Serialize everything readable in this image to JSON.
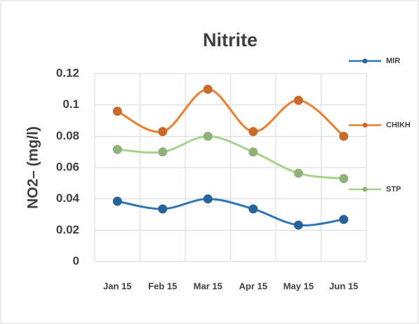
{
  "chart_data": {
    "type": "line",
    "title": "Nitrite",
    "y_label": "NO2– (mg/l)",
    "categories": [
      "Jan 15",
      "Feb 15",
      "Mar 15",
      "Apr 15",
      "May 15",
      "Jun 15"
    ],
    "series": [
      {
        "name": "MIR",
        "color": "#2e75b6",
        "values": [
          0.0385,
          0.0336,
          0.04,
          0.0336,
          0.0233,
          0.0269
        ]
      },
      {
        "name": "CHIKH",
        "color": "#ed7d31",
        "values": [
          0.096,
          0.083,
          0.11,
          0.083,
          0.103,
          0.08
        ]
      },
      {
        "name": "STP",
        "color": "#a9d18e",
        "values": [
          0.0716,
          0.07,
          0.08,
          0.07,
          0.0564,
          0.053
        ]
      }
    ],
    "ylim": [
      0,
      0.12
    ],
    "yticks": [
      0,
      0.02,
      0.04,
      0.06,
      0.08,
      0.1,
      0.12
    ],
    "grid": true,
    "legend": "right",
    "smooth": true
  }
}
